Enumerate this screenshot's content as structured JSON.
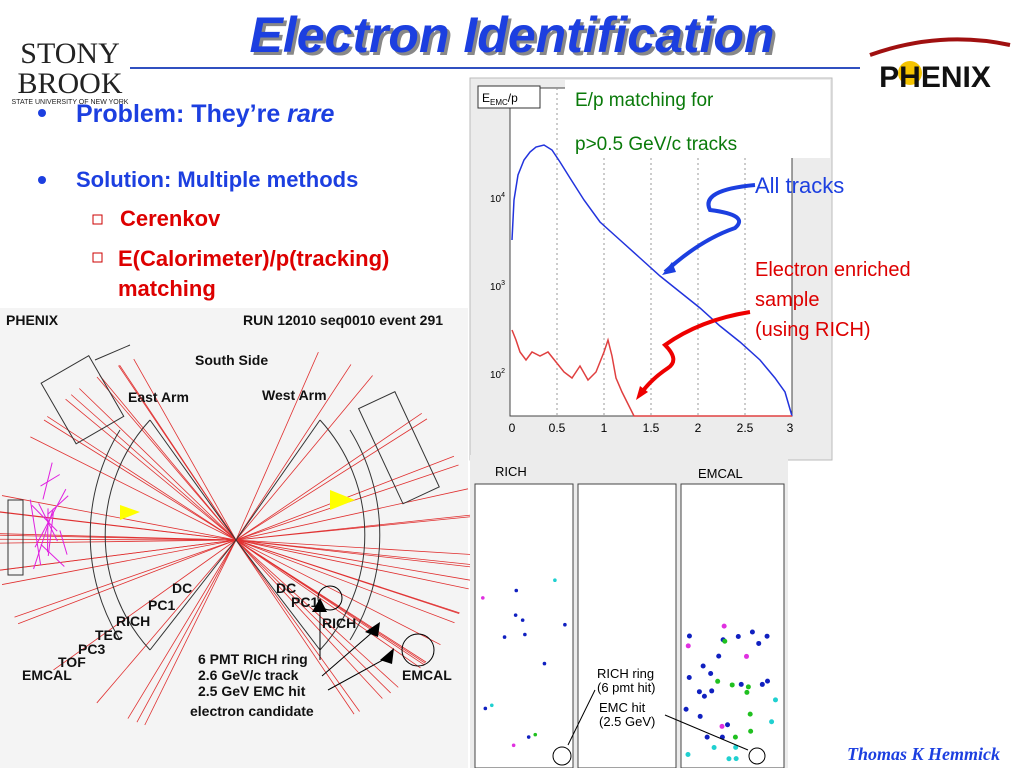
{
  "header": {
    "title": "Electron Identification",
    "logo_left": [
      "STONY",
      "BROOK",
      "STATE UNIVERSITY OF NEW YORK"
    ],
    "logo_right": "PHENIX"
  },
  "bullets": [
    {
      "text": "Problem: They’re ",
      "emph": "rare"
    },
    {
      "text": "Solution: Multiple methods",
      "sub": [
        "Cerenkov",
        "E(Calorimeter)/p(tracking) matching"
      ]
    }
  ],
  "histogram": {
    "label": "E",
    "label_sub": "EMC",
    "label_tail": "/p",
    "xticks": [
      "0",
      "0.5",
      "1",
      "1.5",
      "2",
      "2.5",
      "3"
    ],
    "yticks": [
      {
        "base": "10",
        "exp": "4"
      },
      {
        "base": "10",
        "exp": "3"
      },
      {
        "base": "10",
        "exp": "2"
      }
    ],
    "caption": [
      "E/p matching for",
      "p>0.5 GeV/c tracks"
    ],
    "all_tracks": "All tracks",
    "enriched": [
      "Electron enriched",
      "sample",
      "(using RICH)"
    ]
  },
  "event_display": {
    "experiment": "PHENIX",
    "run": "RUN 12010 seq0010 event 291",
    "south": "South Side",
    "east": "East Arm",
    "west": "West Arm",
    "east_labels": [
      "DC",
      "PC1",
      "RICH",
      "TEC",
      "PC3",
      "TOF",
      "EMCAL"
    ],
    "west_labels": [
      "DC",
      "PC1",
      "RICH",
      "EMCAL"
    ],
    "candidate": [
      "6 PMT RICH ring",
      "2.6 GeV/c track",
      "2.5 GeV EMC hit",
      "electron candidate"
    ]
  },
  "zoom": {
    "rich": "RICH",
    "emcal": "EMCAL",
    "ring": [
      "RICH ring",
      "(6 pmt hit)"
    ],
    "emc": [
      "EMC hit",
      "(2.5 GeV)"
    ]
  },
  "footer": "Thomas K Hemmick"
}
